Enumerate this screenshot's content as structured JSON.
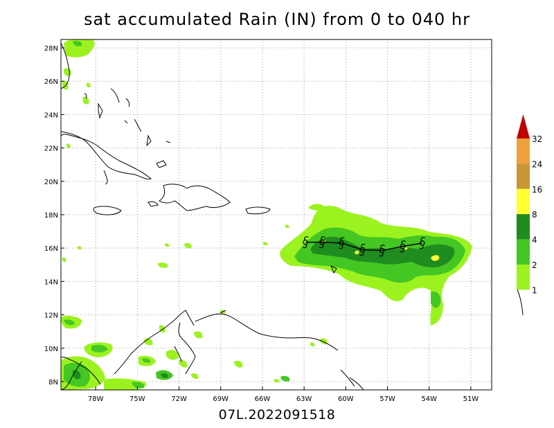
{
  "title": "sat accumulated Rain (IN) from 0 to 040 hr",
  "footer": "07L.2022091518",
  "map": {
    "lat_labels": [
      "28N",
      "26N",
      "24N",
      "22N",
      "20N",
      "18N",
      "16N",
      "14N",
      "12N",
      "10N",
      "8N"
    ],
    "lon_labels": [
      "78W",
      "75W",
      "72W",
      "69W",
      "66W",
      "63W",
      "60W",
      "57W",
      "54W",
      "51W"
    ],
    "lat_range": [
      7.5,
      28.5
    ],
    "lon_range": [
      -80.5,
      -49.5
    ],
    "grid": "dotted"
  },
  "colorbar": {
    "unit": "IN",
    "levels": [
      "1",
      "2",
      "4",
      "8",
      "16",
      "24",
      "32"
    ],
    "colors": [
      "#9cf21f",
      "#44c722",
      "#1f8c1f",
      "#ffff33",
      "#c89632",
      "#f0a03c",
      "#c00000"
    ]
  },
  "storm_track": {
    "symbol": "tropical-storm-symbol",
    "points": [
      {
        "lon": -62.9,
        "lat": 16.35
      },
      {
        "lon": -61.7,
        "lat": 16.35
      },
      {
        "lon": -60.3,
        "lat": 16.3
      },
      {
        "lon": -58.8,
        "lat": 15.9
      },
      {
        "lon": -57.4,
        "lat": 15.85
      },
      {
        "lon": -55.9,
        "lat": 16.1
      },
      {
        "lon": -54.5,
        "lat": 16.3
      }
    ]
  }
}
